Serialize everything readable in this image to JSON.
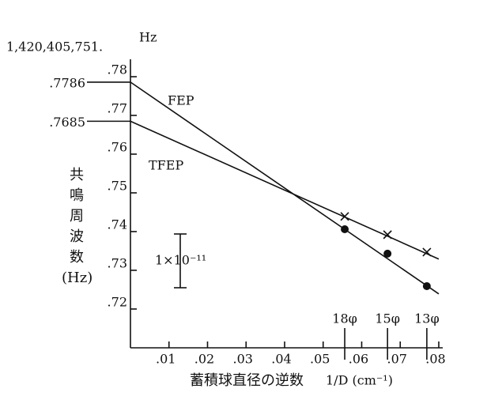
{
  "chart_data": {
    "type": "line",
    "y_prefix": "1,420,405,751.",
    "y_unit": "Hz",
    "y_label": "共鳴周波数",
    "y_label_unit": "(Hz)",
    "x_label": "蓄積球直径の逆数",
    "x_label_unit": "1/D (cm⁻¹)",
    "xlim": [
      0,
      0.08
    ],
    "xticks": [
      {
        "value": 0.01,
        "label": ".01"
      },
      {
        "value": 0.02,
        "label": ".02"
      },
      {
        "value": 0.03,
        "label": ".03"
      },
      {
        "value": 0.04,
        "label": ".04"
      },
      {
        "value": 0.05,
        "label": ".05"
      },
      {
        "value": 0.06,
        "label": ".06"
      },
      {
        "value": 0.07,
        "label": ".07"
      },
      {
        "value": 0.08,
        "label": ".08"
      }
    ],
    "ylim": [
      0.711,
      0.7845
    ],
    "yticks": [
      {
        "value": 0.72,
        "label": ".72"
      },
      {
        "value": 0.73,
        "label": ".73"
      },
      {
        "value": 0.74,
        "label": ".74"
      },
      {
        "value": 0.75,
        "label": ".75"
      },
      {
        "value": 0.76,
        "label": ".76"
      },
      {
        "value": 0.77,
        "label": ".77"
      },
      {
        "value": 0.78,
        "label": ".78"
      }
    ],
    "intercepts": [
      {
        "value": 0.7786,
        "label": ".7786"
      },
      {
        "value": 0.7685,
        "label": ".7685"
      }
    ],
    "series": [
      {
        "name": "FEP",
        "color": "#111",
        "marker": "none",
        "x": [
          0,
          0.08
        ],
        "values": [
          0.7786,
          0.7239
        ]
      },
      {
        "name": "TFEP",
        "color": "#111",
        "marker": "none",
        "x": [
          0,
          0.08
        ],
        "values": [
          0.7685,
          0.7329
        ]
      },
      {
        "color": "#111",
        "marker": "cross",
        "x": [
          0.0556,
          0.0667,
          0.0769
        ],
        "values": [
          0.7439,
          0.7392,
          0.7347
        ]
      },
      {
        "color": "#111",
        "marker": "dot",
        "x": [
          0.0556,
          0.0667,
          0.0769
        ],
        "values": [
          0.7406,
          0.7343,
          0.7259
        ]
      }
    ],
    "sphere_marks": [
      {
        "value": 0.0556,
        "label": "18φ"
      },
      {
        "value": 0.0667,
        "label": "15φ"
      },
      {
        "value": 0.0769,
        "label": "13φ"
      }
    ],
    "scale_bar": "1×10⁻¹¹"
  }
}
